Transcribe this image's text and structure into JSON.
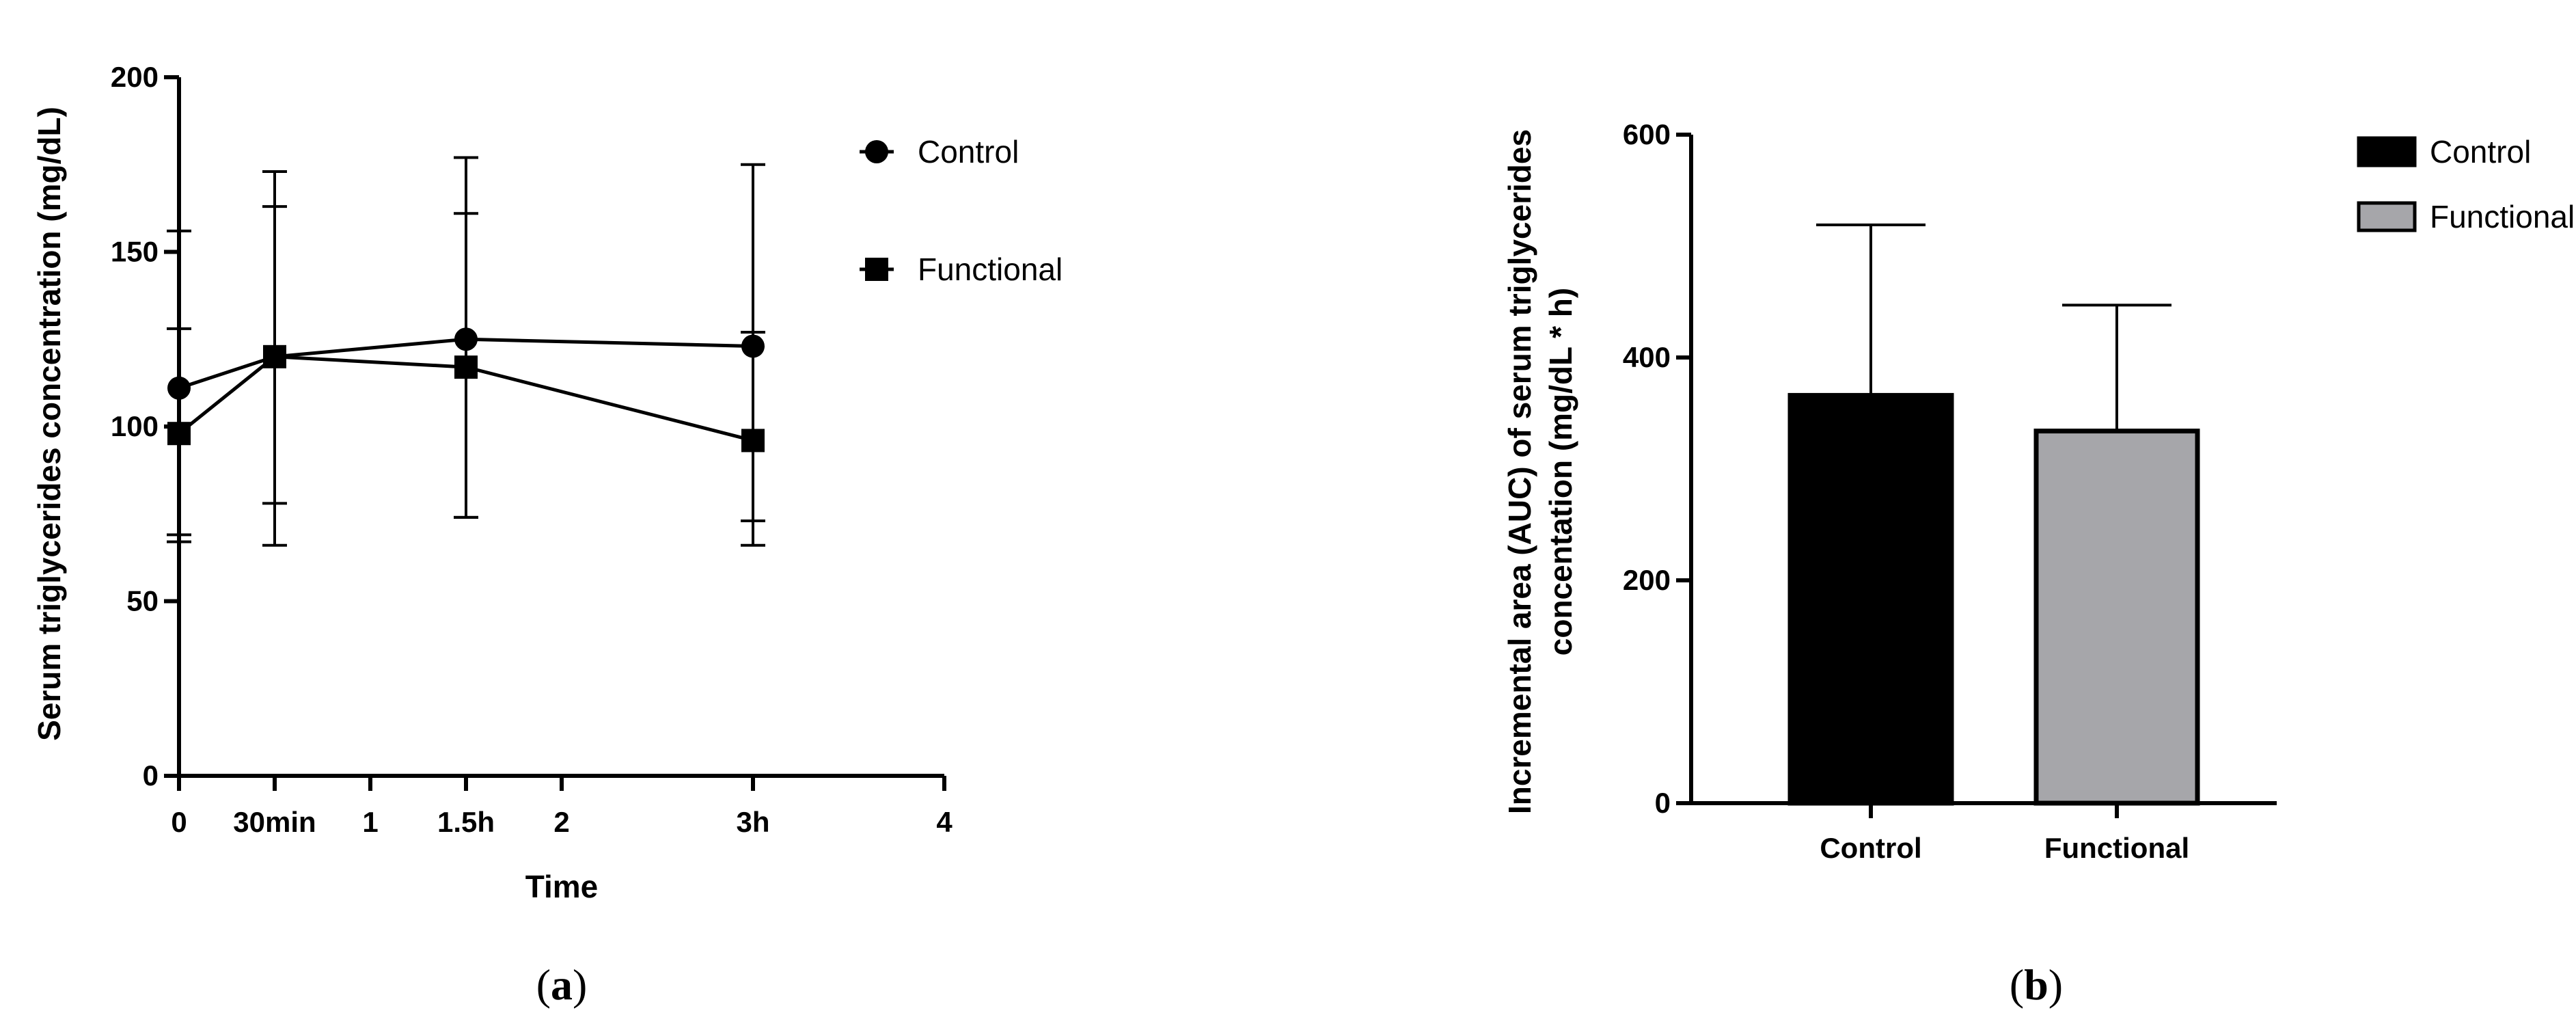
{
  "chart_data": [
    {
      "type": "line",
      "panel_label": {
        "open": "(",
        "letter": "a",
        "close": ")"
      },
      "xlabel": "Time",
      "ylabel": "Serum triglycerides concentration (mg/dL)",
      "xlim": [
        0,
        4
      ],
      "ylim": [
        0,
        200
      ],
      "xticks": [
        {
          "value": 0,
          "label": "0"
        },
        {
          "value": 0.5,
          "label": "30min"
        },
        {
          "value": 1,
          "label": "1"
        },
        {
          "value": 1.5,
          "label": "1.5h"
        },
        {
          "value": 2,
          "label": "2"
        },
        {
          "value": 3,
          "label": "3h"
        },
        {
          "value": 4,
          "label": "4"
        }
      ],
      "yticks": [
        0,
        50,
        100,
        150,
        200
      ],
      "x": [
        0,
        0.5,
        1.5,
        3
      ],
      "series": [
        {
          "name": "Control",
          "marker": "circle",
          "values": [
            111,
            120,
            125,
            123
          ],
          "err_upper": [
            156,
            173,
            177,
            175
          ],
          "err_lower": [
            69,
            66,
            74,
            66
          ]
        },
        {
          "name": "Functional",
          "marker": "square",
          "values": [
            98,
            120,
            117,
            96
          ],
          "err_upper": [
            128,
            163,
            161,
            127
          ],
          "err_lower": [
            67,
            78,
            74,
            73
          ]
        }
      ],
      "legend_position": "top-right"
    },
    {
      "type": "bar",
      "panel_label": {
        "open": "(",
        "letter": "b",
        "close": ")"
      },
      "categories": [
        "Control",
        "Functional"
      ],
      "ylabel_lines": [
        "Incremental area (AUC) of serum triglycerides",
        "concentation (mg/dL * h)"
      ],
      "ylim": [
        0,
        600
      ],
      "yticks": [
        0,
        200,
        400,
        600
      ],
      "values": [
        366,
        334
      ],
      "err_upper": [
        519,
        447
      ],
      "colors": [
        "#000000",
        "#a6a6aa"
      ],
      "legend": [
        {
          "name": "Control",
          "color": "#000000"
        },
        {
          "name": "Functional",
          "color": "#a6a6aa"
        }
      ],
      "legend_position": "top-right"
    }
  ]
}
